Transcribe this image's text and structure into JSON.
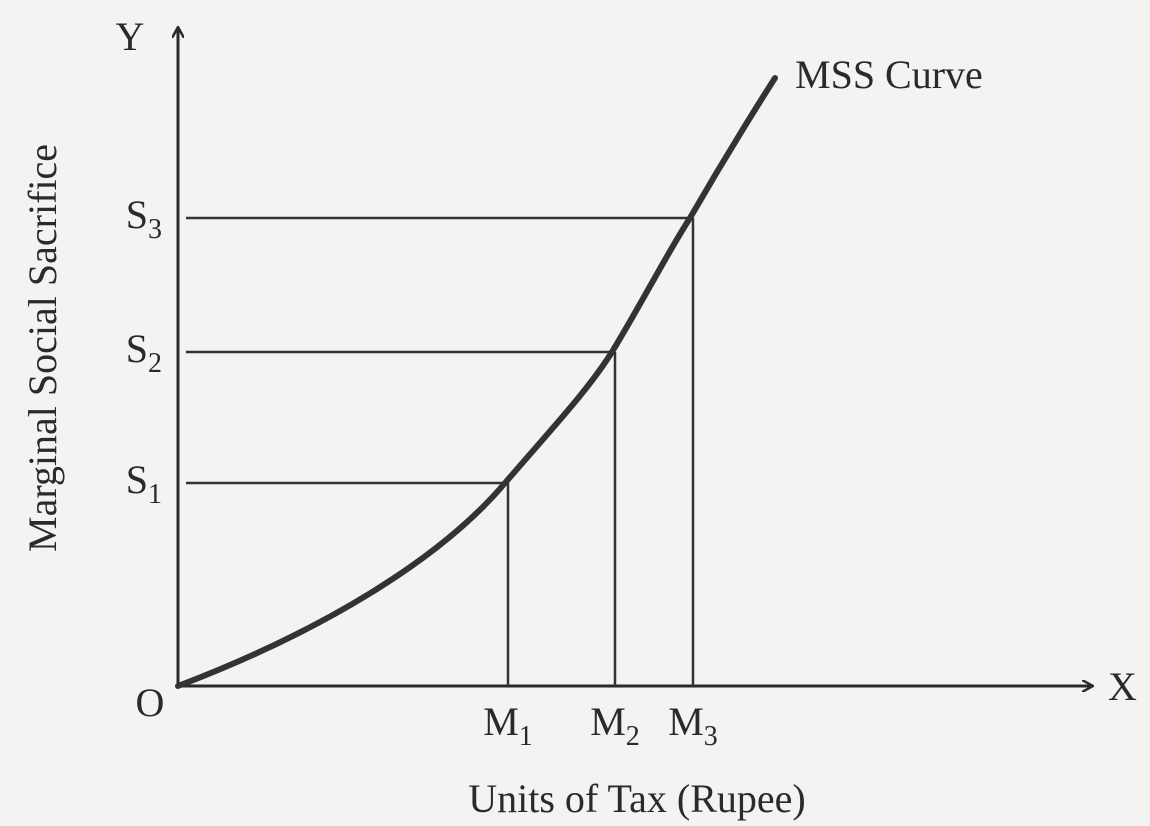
{
  "axes": {
    "y": "Y",
    "x": "X",
    "origin": "O"
  },
  "y_axis_label": "Marginal Social Sacrifice",
  "x_axis_label": "Units of Tax (Rupee)",
  "curve_label": "MSS Curve",
  "y_levels": [
    {
      "base": "S",
      "sub": "1"
    },
    {
      "base": "S",
      "sub": "2"
    },
    {
      "base": "S",
      "sub": "3"
    }
  ],
  "x_levels": [
    {
      "base": "M",
      "sub": "1"
    },
    {
      "base": "M",
      "sub": "2"
    },
    {
      "base": "M",
      "sub": "3"
    }
  ]
}
